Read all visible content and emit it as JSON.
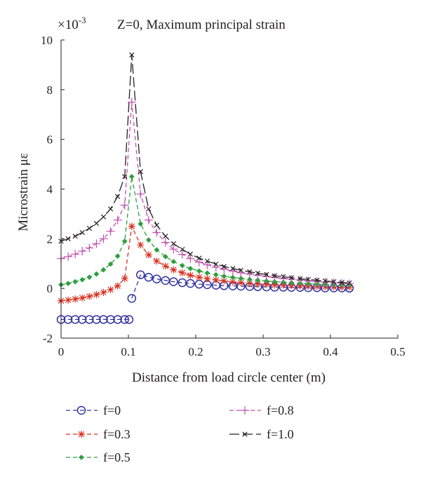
{
  "chart_data": {
    "type": "line",
    "title": "Z=0, Maximum principal strain",
    "multiplier": "×10",
    "multiplier_exp": "-3",
    "xlabel": "Distance from load circle center (m)",
    "ylabel": "Microstrain με",
    "xlim": [
      0,
      0.5
    ],
    "ylim": [
      -2,
      10
    ],
    "xticks": [
      "0",
      "0.1",
      "0.2",
      "0.3",
      "0.4",
      "0.5"
    ],
    "yticks": [
      "-2",
      "0",
      "2",
      "4",
      "6",
      "8",
      "10"
    ],
    "grid": false,
    "legend_position": "bottom",
    "series": [
      {
        "name": "f=0",
        "color": "#3333a0",
        "marker": "circle",
        "dash": "dash",
        "left": {
          "x": [
            0,
            0.0105,
            0.021,
            0.0315,
            0.042,
            0.0525,
            0.063,
            0.0735,
            0.084,
            0.0945,
            0.101
          ],
          "y": [
            -1.25,
            -1.25,
            -1.25,
            -1.25,
            -1.25,
            -1.25,
            -1.25,
            -1.25,
            -1.25,
            -1.25,
            -1.25
          ]
        },
        "right": {
          "x": [
            0.105,
            0.118,
            0.13,
            0.142,
            0.155,
            0.167,
            0.18,
            0.192,
            0.205,
            0.217,
            0.23,
            0.242,
            0.255,
            0.267,
            0.28,
            0.292,
            0.305,
            0.317,
            0.33,
            0.342,
            0.355,
            0.367,
            0.38,
            0.392,
            0.405,
            0.417,
            0.428
          ],
          "y": [
            -0.4,
            0.55,
            0.45,
            0.38,
            0.32,
            0.27,
            0.23,
            0.2,
            0.17,
            0.15,
            0.13,
            0.11,
            0.1,
            0.09,
            0.08,
            0.07,
            0.06,
            0.05,
            0.05,
            0.04,
            0.04,
            0.03,
            0.03,
            0.02,
            0.02,
            0.02,
            0.01
          ]
        }
      },
      {
        "name": "f=0.3",
        "color": "#d7301f",
        "marker": "star",
        "dash": "dash",
        "x": [
          0,
          0.0105,
          0.021,
          0.0315,
          0.042,
          0.0525,
          0.063,
          0.0735,
          0.084,
          0.0945,
          0.105,
          0.118,
          0.13,
          0.142,
          0.155,
          0.167,
          0.18,
          0.192,
          0.205,
          0.217,
          0.23,
          0.242,
          0.255,
          0.267,
          0.28,
          0.292,
          0.305,
          0.317,
          0.33,
          0.342,
          0.355,
          0.367,
          0.38,
          0.392,
          0.405,
          0.417,
          0.428
        ],
        "y": [
          -0.5,
          -0.47,
          -0.43,
          -0.38,
          -0.32,
          -0.25,
          -0.16,
          -0.05,
          0.1,
          0.4,
          2.5,
          1.75,
          1.35,
          1.1,
          0.9,
          0.75,
          0.63,
          0.53,
          0.45,
          0.39,
          0.34,
          0.3,
          0.26,
          0.23,
          0.2,
          0.18,
          0.16,
          0.14,
          0.13,
          0.12,
          0.1,
          0.09,
          0.08,
          0.07,
          0.06,
          0.05,
          0.05
        ]
      },
      {
        "name": "f=0.5",
        "color": "#2e9e3e",
        "marker": "diamond",
        "dash": "dash",
        "x": [
          0,
          0.0105,
          0.021,
          0.0315,
          0.042,
          0.0525,
          0.063,
          0.0735,
          0.084,
          0.0945,
          0.105,
          0.118,
          0.13,
          0.142,
          0.155,
          0.167,
          0.18,
          0.192,
          0.205,
          0.217,
          0.23,
          0.242,
          0.255,
          0.267,
          0.28,
          0.292,
          0.305,
          0.317,
          0.33,
          0.342,
          0.355,
          0.367,
          0.38,
          0.392,
          0.405,
          0.417,
          0.428
        ],
        "y": [
          0.15,
          0.2,
          0.27,
          0.35,
          0.45,
          0.58,
          0.75,
          0.98,
          1.3,
          1.9,
          4.5,
          2.6,
          1.95,
          1.55,
          1.28,
          1.08,
          0.92,
          0.8,
          0.7,
          0.62,
          0.55,
          0.49,
          0.44,
          0.4,
          0.36,
          0.33,
          0.3,
          0.27,
          0.25,
          0.23,
          0.21,
          0.19,
          0.17,
          0.16,
          0.14,
          0.13,
          0.12
        ]
      },
      {
        "name": "f=0.8",
        "color": "#c050b0",
        "marker": "plus",
        "dash": "dash",
        "x": [
          0,
          0.0105,
          0.021,
          0.0315,
          0.042,
          0.0525,
          0.063,
          0.0735,
          0.084,
          0.0945,
          0.105,
          0.118,
          0.13,
          0.142,
          0.155,
          0.167,
          0.18,
          0.192,
          0.205,
          0.217,
          0.23,
          0.242,
          0.255,
          0.267,
          0.28,
          0.292,
          0.305,
          0.317,
          0.33,
          0.342,
          0.355,
          0.367,
          0.38,
          0.392,
          0.405,
          0.417,
          0.428
        ],
        "y": [
          1.2,
          1.28,
          1.38,
          1.5,
          1.63,
          1.8,
          2.0,
          2.3,
          2.75,
          3.35,
          7.5,
          3.8,
          2.75,
          2.25,
          1.85,
          1.58,
          1.37,
          1.2,
          1.06,
          0.95,
          0.85,
          0.77,
          0.7,
          0.63,
          0.58,
          0.53,
          0.48,
          0.44,
          0.4,
          0.37,
          0.34,
          0.31,
          0.28,
          0.26,
          0.23,
          0.21,
          0.19
        ]
      },
      {
        "name": "f=1.0",
        "color": "#231f20",
        "marker": "x",
        "dash": "longdash",
        "x": [
          0,
          0.0105,
          0.021,
          0.0315,
          0.042,
          0.0525,
          0.063,
          0.0735,
          0.084,
          0.0945,
          0.105,
          0.118,
          0.13,
          0.142,
          0.155,
          0.167,
          0.18,
          0.192,
          0.205,
          0.217,
          0.23,
          0.242,
          0.255,
          0.267,
          0.28,
          0.292,
          0.305,
          0.317,
          0.33,
          0.342,
          0.355,
          0.367,
          0.38,
          0.392,
          0.405,
          0.417,
          0.428
        ],
        "y": [
          1.9,
          2.0,
          2.1,
          2.25,
          2.42,
          2.62,
          2.88,
          3.2,
          3.7,
          4.5,
          9.4,
          4.7,
          3.2,
          2.55,
          2.1,
          1.8,
          1.57,
          1.38,
          1.22,
          1.1,
          0.98,
          0.88,
          0.8,
          0.73,
          0.67,
          0.61,
          0.56,
          0.51,
          0.47,
          0.43,
          0.39,
          0.36,
          0.33,
          0.3,
          0.27,
          0.24,
          0.22
        ]
      }
    ]
  }
}
